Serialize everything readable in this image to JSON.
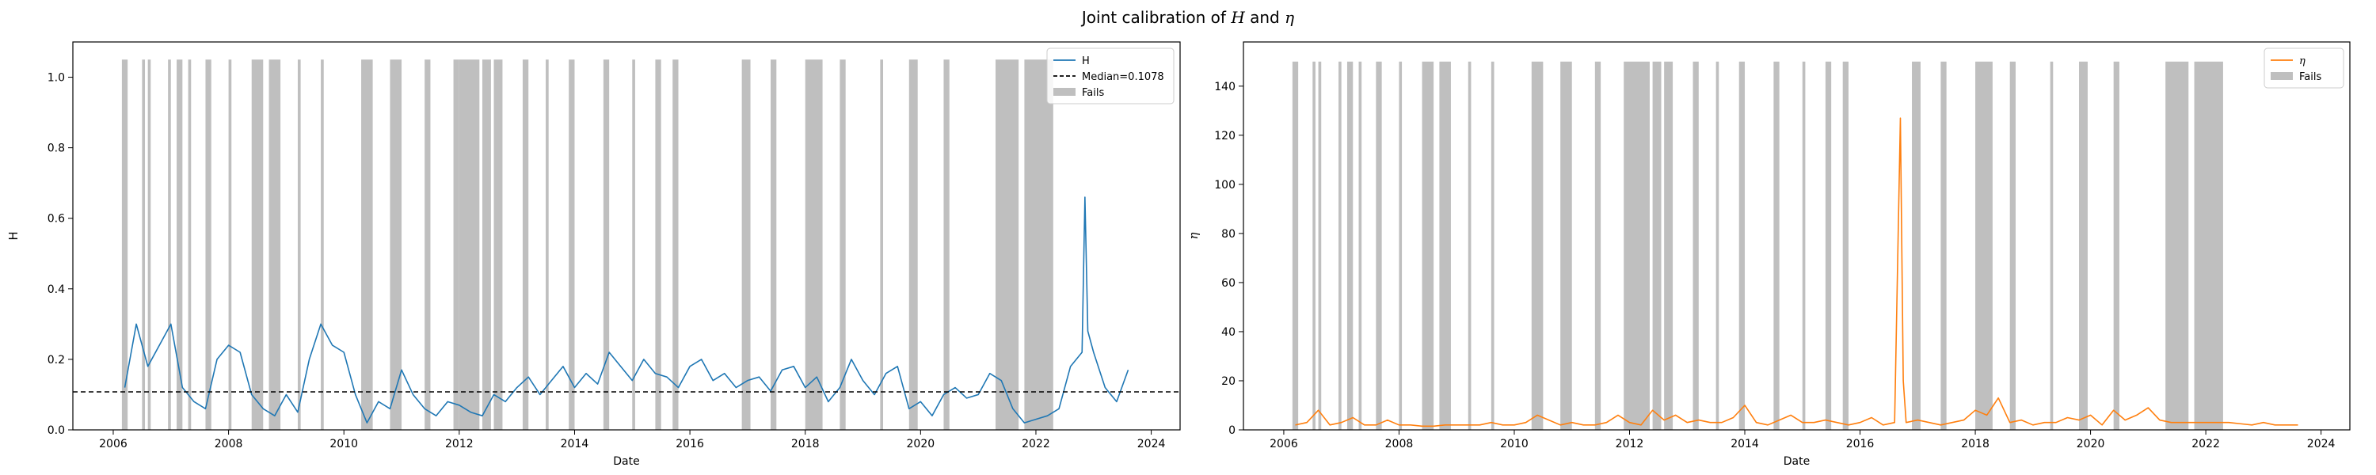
{
  "figure": {
    "suptitle_prefix": "Joint calibration of ",
    "suptitle_var1": "H",
    "suptitle_mid": " and ",
    "suptitle_var2": "η"
  },
  "chart_data": [
    {
      "type": "line",
      "xlabel": "Date",
      "ylabel": "H",
      "x_ticks": [
        "2006",
        "2008",
        "2010",
        "2012",
        "2014",
        "2016",
        "2018",
        "2020",
        "2022",
        "2024"
      ],
      "y_ticks": [
        "0.0",
        "0.2",
        "0.4",
        "0.6",
        "0.8",
        "1.0"
      ],
      "xlim": [
        2005.3,
        2024.5
      ],
      "ylim": [
        0,
        1.1
      ],
      "grid": false,
      "legend_position": "top-right",
      "legend": [
        "H",
        "Median=0.1078",
        "Fails"
      ],
      "series": [
        {
          "name": "H",
          "color": "#1f77b4",
          "x": [
            2006.2,
            2006.4,
            2006.6,
            2006.8,
            2007.0,
            2007.2,
            2007.4,
            2007.6,
            2007.8,
            2008.0,
            2008.2,
            2008.4,
            2008.6,
            2008.8,
            2009.0,
            2009.2,
            2009.4,
            2009.6,
            2009.8,
            2010.0,
            2010.2,
            2010.4,
            2010.6,
            2010.8,
            2011.0,
            2011.2,
            2011.4,
            2011.6,
            2011.8,
            2012.0,
            2012.2,
            2012.4,
            2012.6,
            2012.8,
            2013.0,
            2013.2,
            2013.4,
            2013.6,
            2013.8,
            2014.0,
            2014.2,
            2014.4,
            2014.6,
            2014.8,
            2015.0,
            2015.2,
            2015.4,
            2015.6,
            2015.8,
            2016.0,
            2016.2,
            2016.4,
            2016.6,
            2016.8,
            2017.0,
            2017.2,
            2017.4,
            2017.6,
            2017.8,
            2018.0,
            2018.2,
            2018.4,
            2018.6,
            2018.8,
            2019.0,
            2019.2,
            2019.4,
            2019.6,
            2019.8,
            2020.0,
            2020.2,
            2020.4,
            2020.6,
            2020.8,
            2021.0,
            2021.2,
            2021.4,
            2021.6,
            2021.8,
            2022.0,
            2022.2,
            2022.4,
            2022.6,
            2022.8,
            2022.85,
            2022.9,
            2023.0,
            2023.2,
            2023.4,
            2023.6
          ],
          "y": [
            0.12,
            0.3,
            0.18,
            0.24,
            0.3,
            0.12,
            0.08,
            0.06,
            0.2,
            0.24,
            0.22,
            0.1,
            0.06,
            0.04,
            0.1,
            0.05,
            0.2,
            0.3,
            0.24,
            0.22,
            0.1,
            0.02,
            0.08,
            0.06,
            0.17,
            0.1,
            0.06,
            0.04,
            0.08,
            0.07,
            0.05,
            0.04,
            0.1,
            0.08,
            0.12,
            0.15,
            0.1,
            0.14,
            0.18,
            0.12,
            0.16,
            0.13,
            0.22,
            0.18,
            0.14,
            0.2,
            0.16,
            0.15,
            0.12,
            0.18,
            0.2,
            0.14,
            0.16,
            0.12,
            0.14,
            0.15,
            0.11,
            0.17,
            0.18,
            0.12,
            0.15,
            0.08,
            0.12,
            0.2,
            0.14,
            0.1,
            0.16,
            0.18,
            0.06,
            0.08,
            0.04,
            0.1,
            0.12,
            0.09,
            0.1,
            0.16,
            0.14,
            0.06,
            0.02,
            0.03,
            0.04,
            0.06,
            0.18,
            0.22,
            0.66,
            0.28,
            0.22,
            0.12,
            0.08,
            0.17
          ]
        },
        {
          "name": "Median=0.1078",
          "color": "#000000",
          "style": "dashed",
          "constant": 0.1078
        }
      ],
      "fail_color": "#bfbfbf",
      "fail_top": 1.05,
      "fail_intervals": [
        [
          2006.15,
          2006.25
        ],
        [
          2006.5,
          2006.55
        ],
        [
          2006.6,
          2006.65
        ],
        [
          2006.95,
          2007.0
        ],
        [
          2007.1,
          2007.2
        ],
        [
          2007.3,
          2007.35
        ],
        [
          2007.6,
          2007.7
        ],
        [
          2008.0,
          2008.05
        ],
        [
          2008.4,
          2008.6
        ],
        [
          2008.7,
          2008.9
        ],
        [
          2009.2,
          2009.25
        ],
        [
          2009.6,
          2009.65
        ],
        [
          2010.3,
          2010.5
        ],
        [
          2010.8,
          2011.0
        ],
        [
          2011.4,
          2011.5
        ],
        [
          2011.9,
          2012.0
        ],
        [
          2012.0,
          2012.35
        ],
        [
          2012.4,
          2012.55
        ],
        [
          2012.6,
          2012.75
        ],
        [
          2013.1,
          2013.2
        ],
        [
          2013.5,
          2013.55
        ],
        [
          2013.9,
          2014.0
        ],
        [
          2014.5,
          2014.6
        ],
        [
          2015.0,
          2015.05
        ],
        [
          2015.4,
          2015.5
        ],
        [
          2015.7,
          2015.8
        ],
        [
          2016.9,
          2017.05
        ],
        [
          2017.4,
          2017.5
        ],
        [
          2018.0,
          2018.3
        ],
        [
          2018.6,
          2018.7
        ],
        [
          2019.3,
          2019.35
        ],
        [
          2019.8,
          2019.95
        ],
        [
          2020.4,
          2020.5
        ],
        [
          2021.3,
          2021.7
        ],
        [
          2021.8,
          2022.3
        ]
      ]
    },
    {
      "type": "line",
      "xlabel": "Date",
      "ylabel": "η",
      "x_ticks": [
        "2006",
        "2008",
        "2010",
        "2012",
        "2014",
        "2016",
        "2018",
        "2020",
        "2022",
        "2024"
      ],
      "y_ticks": [
        "0",
        "20",
        "40",
        "60",
        "80",
        "100",
        "120",
        "140"
      ],
      "xlim": [
        2005.3,
        2024.5
      ],
      "ylim": [
        0,
        158
      ],
      "grid": false,
      "legend_position": "top-right",
      "legend": [
        "η",
        "Fails"
      ],
      "series": [
        {
          "name": "η",
          "color": "#ff7f0e",
          "x": [
            2006.2,
            2006.4,
            2006.6,
            2006.8,
            2007.0,
            2007.2,
            2007.4,
            2007.6,
            2007.8,
            2008.0,
            2008.2,
            2008.4,
            2008.6,
            2008.8,
            2009.0,
            2009.2,
            2009.4,
            2009.6,
            2009.8,
            2010.0,
            2010.2,
            2010.4,
            2010.6,
            2010.8,
            2011.0,
            2011.2,
            2011.4,
            2011.6,
            2011.8,
            2012.0,
            2012.2,
            2012.4,
            2012.6,
            2012.8,
            2013.0,
            2013.2,
            2013.4,
            2013.6,
            2013.8,
            2014.0,
            2014.2,
            2014.4,
            2014.6,
            2014.8,
            2015.0,
            2015.2,
            2015.4,
            2015.6,
            2015.8,
            2016.0,
            2016.2,
            2016.4,
            2016.6,
            2016.7,
            2016.75,
            2016.8,
            2017.0,
            2017.2,
            2017.4,
            2017.6,
            2017.8,
            2018.0,
            2018.2,
            2018.4,
            2018.6,
            2018.8,
            2019.0,
            2019.2,
            2019.4,
            2019.6,
            2019.8,
            2020.0,
            2020.2,
            2020.4,
            2020.6,
            2020.8,
            2021.0,
            2021.2,
            2021.4,
            2021.6,
            2021.8,
            2022.0,
            2022.2,
            2022.4,
            2022.6,
            2022.8,
            2023.0,
            2023.2,
            2023.4,
            2023.6
          ],
          "y": [
            2,
            3,
            8,
            2,
            3,
            5,
            2,
            2,
            4,
            2,
            2,
            1.5,
            1.5,
            2,
            2,
            2,
            2,
            3,
            2,
            2,
            3,
            6,
            4,
            2,
            3,
            2,
            2,
            3,
            6,
            3,
            2,
            8,
            4,
            6,
            3,
            4,
            3,
            3,
            5,
            10,
            3,
            2,
            4,
            6,
            3,
            3,
            4,
            3,
            2,
            3,
            5,
            2,
            3,
            127,
            20,
            3,
            4,
            3,
            2,
            3,
            4,
            8,
            6,
            13,
            3,
            4,
            2,
            3,
            3,
            5,
            4,
            6,
            2,
            8,
            4,
            6,
            9,
            4,
            3,
            3,
            3,
            3,
            3,
            3,
            2.5,
            2,
            3,
            2,
            2,
            2
          ]
        }
      ],
      "fail_color": "#bfbfbf",
      "fail_top": 150,
      "fail_intervals": [
        [
          2006.15,
          2006.25
        ],
        [
          2006.5,
          2006.55
        ],
        [
          2006.6,
          2006.65
        ],
        [
          2006.95,
          2007.0
        ],
        [
          2007.1,
          2007.2
        ],
        [
          2007.3,
          2007.35
        ],
        [
          2007.6,
          2007.7
        ],
        [
          2008.0,
          2008.05
        ],
        [
          2008.4,
          2008.6
        ],
        [
          2008.7,
          2008.9
        ],
        [
          2009.2,
          2009.25
        ],
        [
          2009.6,
          2009.65
        ],
        [
          2010.3,
          2010.5
        ],
        [
          2010.8,
          2011.0
        ],
        [
          2011.4,
          2011.5
        ],
        [
          2011.9,
          2012.0
        ],
        [
          2012.0,
          2012.35
        ],
        [
          2012.4,
          2012.55
        ],
        [
          2012.6,
          2012.75
        ],
        [
          2013.1,
          2013.2
        ],
        [
          2013.5,
          2013.55
        ],
        [
          2013.9,
          2014.0
        ],
        [
          2014.5,
          2014.6
        ],
        [
          2015.0,
          2015.05
        ],
        [
          2015.4,
          2015.5
        ],
        [
          2015.7,
          2015.8
        ],
        [
          2016.9,
          2017.05
        ],
        [
          2017.4,
          2017.5
        ],
        [
          2018.0,
          2018.3
        ],
        [
          2018.6,
          2018.7
        ],
        [
          2019.3,
          2019.35
        ],
        [
          2019.8,
          2019.95
        ],
        [
          2020.4,
          2020.5
        ],
        [
          2021.3,
          2021.7
        ],
        [
          2021.8,
          2022.3
        ]
      ]
    }
  ]
}
